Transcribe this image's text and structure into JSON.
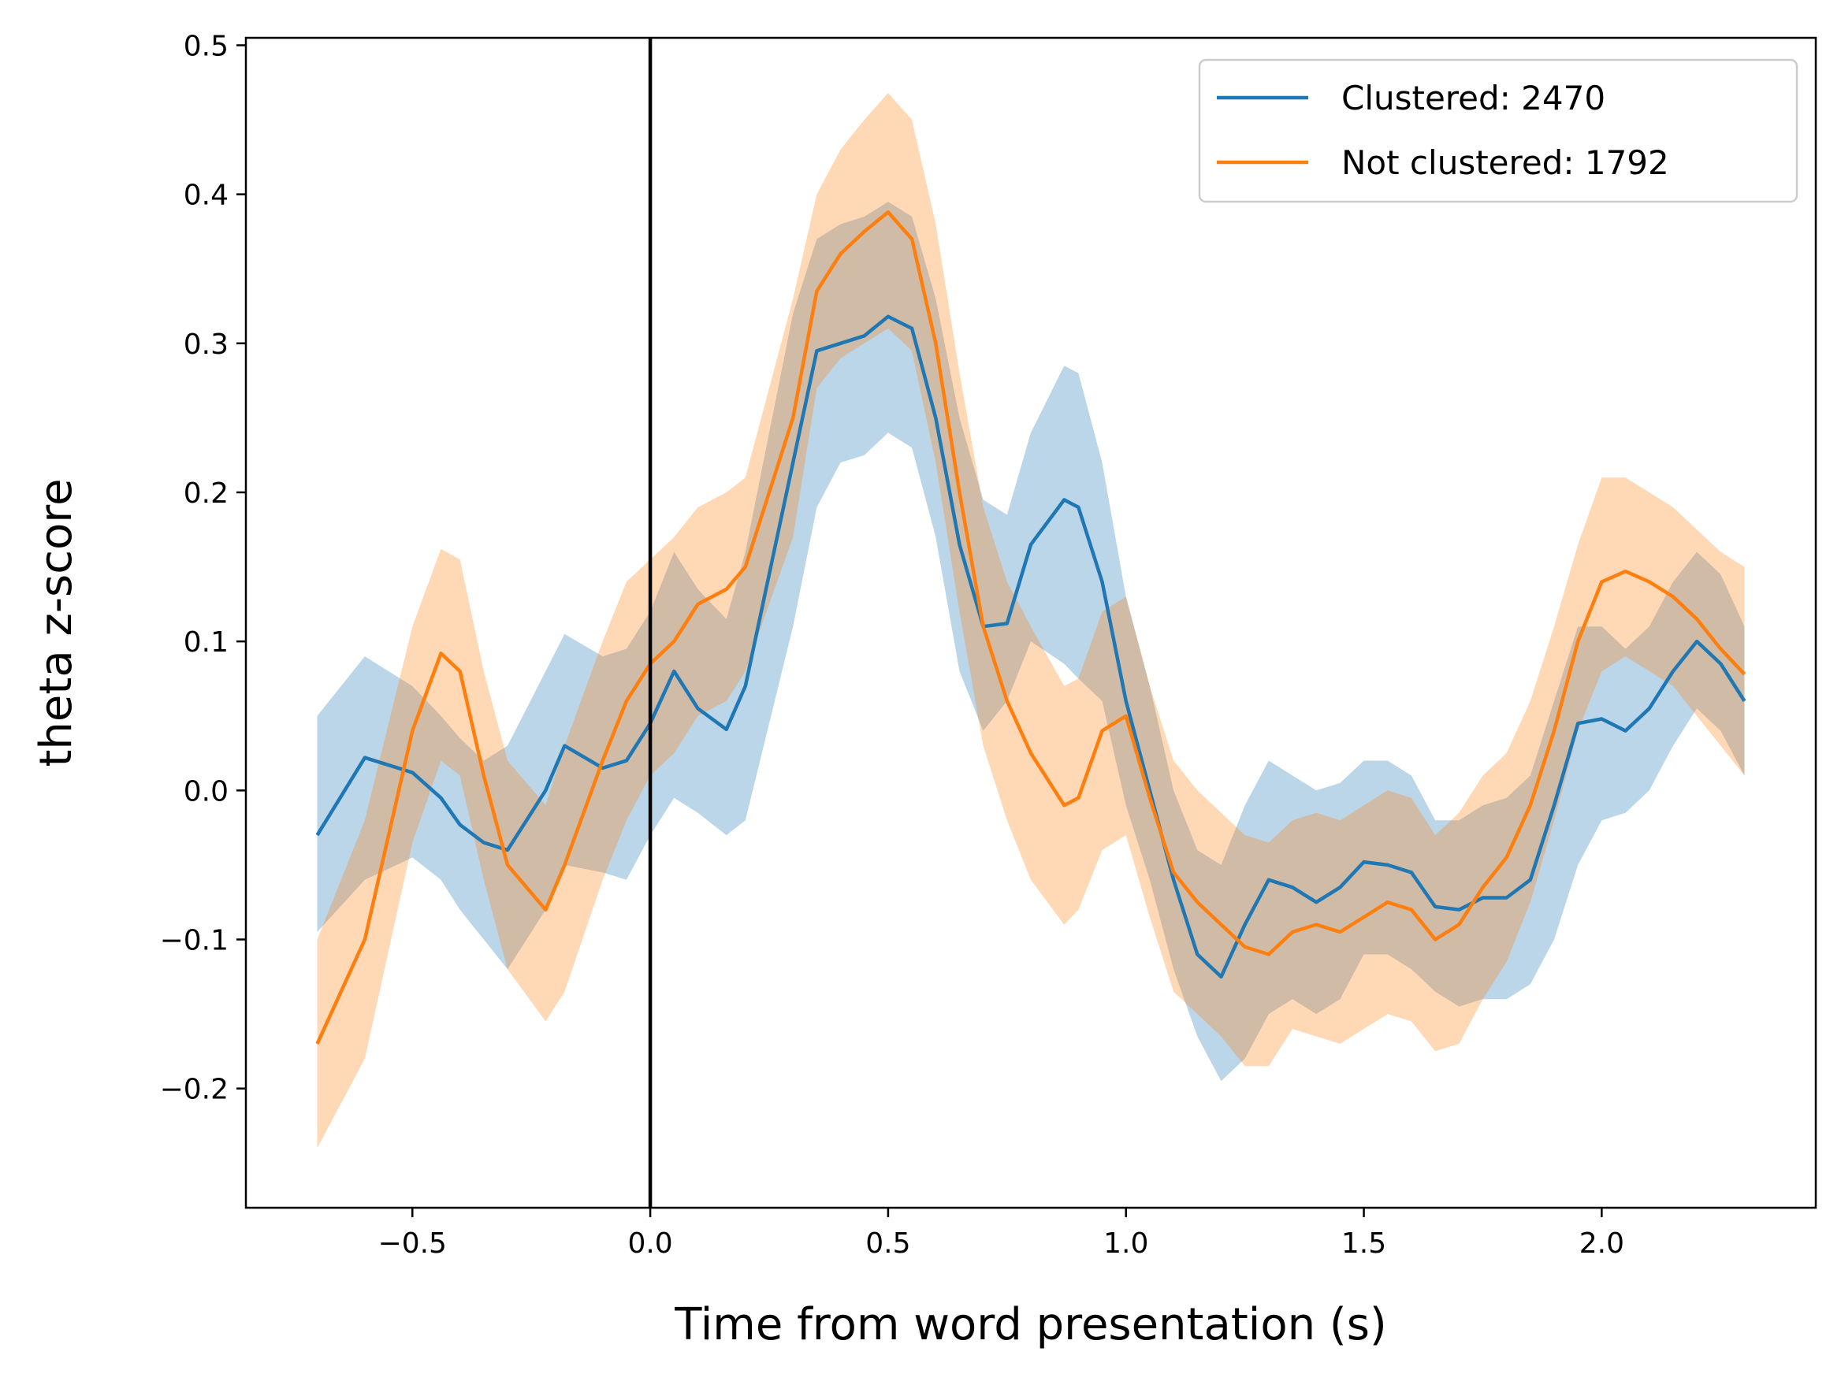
{
  "chart_data": {
    "type": "line",
    "xlabel": "Time from word presentation (s)",
    "ylabel": "theta z-score",
    "xlim": [
      -0.85,
      2.45
    ],
    "ylim": [
      -0.28,
      0.505
    ],
    "xticks": [
      -0.5,
      0.0,
      0.5,
      1.0,
      1.5,
      2.0
    ],
    "xtick_labels": [
      "−0.5",
      "0.0",
      "0.5",
      "1.0",
      "1.5",
      "2.0"
    ],
    "yticks": [
      -0.2,
      -0.1,
      0.0,
      0.1,
      0.2,
      0.3,
      0.4,
      0.5
    ],
    "ytick_labels": [
      "−0.2",
      "−0.1",
      "0.0",
      "0.1",
      "0.2",
      "0.3",
      "0.4",
      "0.5"
    ],
    "grid": false,
    "legend_position": "top-right",
    "vline_x": 0.0,
    "vline_color": "#000000",
    "x": [
      -0.7,
      -0.6,
      -0.5,
      -0.44,
      -0.4,
      -0.35,
      -0.3,
      -0.22,
      -0.18,
      -0.1,
      -0.05,
      0.0,
      0.05,
      0.1,
      0.16,
      0.2,
      0.3,
      0.35,
      0.4,
      0.45,
      0.5,
      0.55,
      0.6,
      0.65,
      0.7,
      0.75,
      0.8,
      0.87,
      0.9,
      0.95,
      1.0,
      1.05,
      1.1,
      1.15,
      1.2,
      1.25,
      1.3,
      1.35,
      1.4,
      1.45,
      1.5,
      1.55,
      1.6,
      1.65,
      1.7,
      1.75,
      1.8,
      1.85,
      1.9,
      1.95,
      2.0,
      2.05,
      2.1,
      2.15,
      2.2,
      2.25,
      2.3
    ],
    "series": [
      {
        "name": "Clustered: 2470",
        "color": "#1f77b4",
        "values": [
          -0.03,
          0.022,
          0.012,
          -0.005,
          -0.023,
          -0.035,
          -0.04,
          0.0,
          0.03,
          0.015,
          0.02,
          0.045,
          0.08,
          0.055,
          0.041,
          0.07,
          0.22,
          0.295,
          0.3,
          0.305,
          0.318,
          0.31,
          0.25,
          0.165,
          0.11,
          0.112,
          0.165,
          0.195,
          0.19,
          0.14,
          0.06,
          0.0,
          -0.06,
          -0.11,
          -0.125,
          -0.09,
          -0.06,
          -0.065,
          -0.075,
          -0.065,
          -0.048,
          -0.05,
          -0.055,
          -0.078,
          -0.08,
          -0.072,
          -0.072,
          -0.06,
          -0.01,
          0.045,
          0.048,
          0.04,
          0.055,
          0.08,
          0.1,
          0.085,
          0.06
        ],
        "lower": [
          -0.095,
          -0.06,
          -0.045,
          -0.06,
          -0.08,
          -0.1,
          -0.12,
          -0.08,
          -0.05,
          -0.055,
          -0.06,
          -0.03,
          -0.005,
          -0.015,
          -0.03,
          -0.02,
          0.11,
          0.19,
          0.22,
          0.225,
          0.24,
          0.23,
          0.17,
          0.08,
          0.04,
          0.06,
          0.1,
          0.085,
          0.075,
          0.06,
          -0.01,
          -0.06,
          -0.12,
          -0.165,
          -0.195,
          -0.18,
          -0.15,
          -0.14,
          -0.15,
          -0.14,
          -0.11,
          -0.11,
          -0.12,
          -0.135,
          -0.145,
          -0.14,
          -0.14,
          -0.13,
          -0.1,
          -0.05,
          -0.02,
          -0.015,
          0.0,
          0.03,
          0.055,
          0.04,
          0.01
        ],
        "upper": [
          0.05,
          0.09,
          0.07,
          0.05,
          0.035,
          0.02,
          0.03,
          0.08,
          0.105,
          0.09,
          0.095,
          0.12,
          0.16,
          0.135,
          0.115,
          0.16,
          0.32,
          0.37,
          0.38,
          0.385,
          0.395,
          0.385,
          0.33,
          0.25,
          0.195,
          0.185,
          0.24,
          0.285,
          0.28,
          0.22,
          0.13,
          0.07,
          0.0,
          -0.04,
          -0.05,
          -0.01,
          0.02,
          0.01,
          0.0,
          0.005,
          0.02,
          0.02,
          0.01,
          -0.02,
          -0.02,
          -0.01,
          -0.005,
          0.01,
          0.06,
          0.11,
          0.11,
          0.095,
          0.11,
          0.14,
          0.16,
          0.145,
          0.11
        ]
      },
      {
        "name": "Not clustered: 1792",
        "color": "#ff7f0e",
        "values": [
          -0.17,
          -0.1,
          0.04,
          0.092,
          0.08,
          0.01,
          -0.05,
          -0.08,
          -0.05,
          0.02,
          0.06,
          0.085,
          0.1,
          0.125,
          0.135,
          0.15,
          0.25,
          0.335,
          0.36,
          0.375,
          0.388,
          0.37,
          0.3,
          0.2,
          0.11,
          0.06,
          0.025,
          -0.01,
          -0.005,
          0.04,
          0.05,
          -0.005,
          -0.055,
          -0.075,
          -0.09,
          -0.105,
          -0.11,
          -0.095,
          -0.09,
          -0.095,
          -0.085,
          -0.075,
          -0.08,
          -0.1,
          -0.09,
          -0.065,
          -0.045,
          -0.01,
          0.04,
          0.1,
          0.14,
          0.147,
          0.14,
          0.13,
          0.115,
          0.095,
          0.078
        ],
        "lower": [
          -0.24,
          -0.18,
          -0.035,
          0.02,
          0.01,
          -0.06,
          -0.12,
          -0.155,
          -0.135,
          -0.06,
          -0.02,
          0.01,
          0.025,
          0.05,
          0.06,
          0.08,
          0.17,
          0.27,
          0.29,
          0.3,
          0.31,
          0.295,
          0.22,
          0.12,
          0.03,
          -0.02,
          -0.06,
          -0.09,
          -0.08,
          -0.04,
          -0.03,
          -0.085,
          -0.135,
          -0.15,
          -0.165,
          -0.185,
          -0.185,
          -0.16,
          -0.165,
          -0.17,
          -0.16,
          -0.15,
          -0.155,
          -0.175,
          -0.17,
          -0.14,
          -0.115,
          -0.075,
          -0.02,
          0.04,
          0.08,
          0.09,
          0.08,
          0.07,
          0.05,
          0.03,
          0.01
        ],
        "upper": [
          -0.1,
          -0.02,
          0.11,
          0.162,
          0.155,
          0.08,
          0.02,
          -0.01,
          0.03,
          0.1,
          0.14,
          0.155,
          0.17,
          0.19,
          0.2,
          0.21,
          0.33,
          0.4,
          0.43,
          0.45,
          0.468,
          0.45,
          0.38,
          0.28,
          0.19,
          0.14,
          0.11,
          0.07,
          0.075,
          0.12,
          0.13,
          0.07,
          0.02,
          0.0,
          -0.015,
          -0.03,
          -0.035,
          -0.02,
          -0.015,
          -0.02,
          -0.01,
          0.0,
          -0.005,
          -0.03,
          -0.015,
          0.01,
          0.025,
          0.06,
          0.11,
          0.165,
          0.21,
          0.21,
          0.2,
          0.19,
          0.175,
          0.16,
          0.15
        ]
      }
    ]
  }
}
